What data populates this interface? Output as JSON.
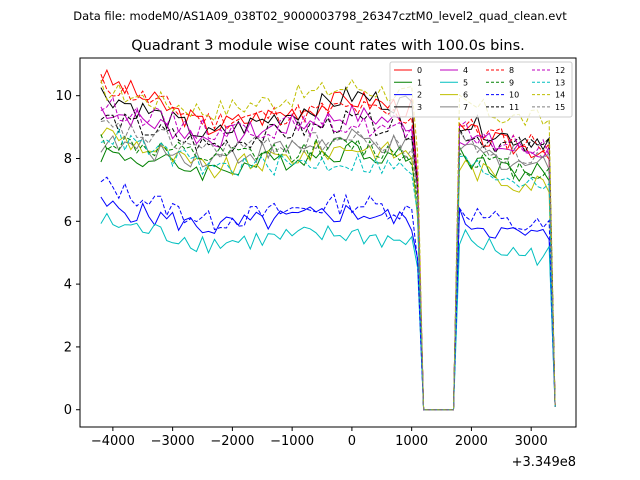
{
  "suptitle": "Data file: modeM0/AS1A09_038T02_9000003798_26347cztM0_level2_quad_clean.evt",
  "chart_data": {
    "type": "line",
    "title": "Quadrant 3 module wise count rates with 100.0s bins.",
    "xlabel": "",
    "ylabel": "",
    "x_offset_label": "+3.349e8",
    "xlim": [
      -4550,
      3750
    ],
    "ylim": [
      -0.55,
      11.2
    ],
    "xticks": [
      -4000,
      -3000,
      -2000,
      -1000,
      0,
      1000,
      2000,
      3000
    ],
    "xtick_labels": [
      "−4000",
      "−3000",
      "−2000",
      "−1000",
      "0",
      "1000",
      "2000",
      "3000"
    ],
    "yticks": [
      0,
      2,
      4,
      6,
      8,
      10
    ],
    "ytick_labels": [
      "0",
      "2",
      "4",
      "6",
      "8",
      "10"
    ],
    "legend_location": "upper right",
    "legend_columns": 4,
    "x_range_start": -4200,
    "x_range_end": 3400,
    "bin_width": 100,
    "gap_range": [
      1200,
      1700
    ],
    "series": [
      {
        "name": "0",
        "color": "#ff0000",
        "dash": "solid",
        "start": 10.6,
        "p1": 9.0,
        "p2": 9.9,
        "p3": 8.4,
        "end": 0.15
      },
      {
        "name": "1",
        "color": "#008000",
        "dash": "solid",
        "start": 8.2,
        "p1": 7.6,
        "p2": 8.3,
        "p3": 7.6,
        "end": 0.1
      },
      {
        "name": "2",
        "color": "#0000ff",
        "dash": "solid",
        "start": 6.5,
        "p1": 5.8,
        "p2": 6.3,
        "p3": 5.6,
        "end": 0.1
      },
      {
        "name": "3",
        "color": "#000000",
        "dash": "solid",
        "start": 10.1,
        "p1": 8.7,
        "p2": 10.0,
        "p3": 8.7,
        "end": 0.15
      },
      {
        "name": "4",
        "color": "#bf00bf",
        "dash": "solid",
        "start": 9.6,
        "p1": 8.6,
        "p2": 9.4,
        "p3": 8.3,
        "end": 0.1
      },
      {
        "name": "5",
        "color": "#00bfbf",
        "dash": "solid",
        "start": 6.0,
        "p1": 5.3,
        "p2": 5.6,
        "p3": 5.0,
        "end": 0.1
      },
      {
        "name": "6",
        "color": "#bfbf00",
        "dash": "solid",
        "start": 8.9,
        "p1": 7.6,
        "p2": 8.4,
        "p3": 7.3,
        "end": 0.1
      },
      {
        "name": "7",
        "color": "#808080",
        "dash": "solid",
        "start": 8.5,
        "p1": 8.0,
        "p2": 8.6,
        "p3": 7.9,
        "end": 0.1
      },
      {
        "name": "8",
        "color": "#ff0000",
        "dash": "dashed",
        "start": 10.4,
        "p1": 9.2,
        "p2": 9.6,
        "p3": 8.6,
        "end": 0.15
      },
      {
        "name": "9",
        "color": "#008000",
        "dash": "dashed",
        "start": 8.6,
        "p1": 8.0,
        "p2": 8.4,
        "p3": 7.7,
        "end": 0.1
      },
      {
        "name": "10",
        "color": "#0000ff",
        "dash": "dashed",
        "start": 7.2,
        "p1": 6.0,
        "p2": 6.6,
        "p3": 5.9,
        "end": 0.1
      },
      {
        "name": "11",
        "color": "#000000",
        "dash": "dashed",
        "start": 9.3,
        "p1": 8.4,
        "p2": 9.2,
        "p3": 8.4,
        "end": 0.1
      },
      {
        "name": "12",
        "color": "#bf00bf",
        "dash": "dashed",
        "start": 9.7,
        "p1": 8.9,
        "p2": 9.1,
        "p3": 8.4,
        "end": 0.1
      },
      {
        "name": "13",
        "color": "#00bfbf",
        "dash": "dashed",
        "start": 8.8,
        "p1": 7.7,
        "p2": 7.9,
        "p3": 7.4,
        "end": 0.1
      },
      {
        "name": "14",
        "color": "#bfbf00",
        "dash": "dashed",
        "start": 10.2,
        "p1": 9.5,
        "p2": 10.3,
        "p3": 9.3,
        "end": 0.15
      },
      {
        "name": "15",
        "color": "#808080",
        "dash": "dashed",
        "start": 9.0,
        "p1": 8.3,
        "p2": 8.6,
        "p3": 8.1,
        "end": 0.1
      }
    ]
  }
}
